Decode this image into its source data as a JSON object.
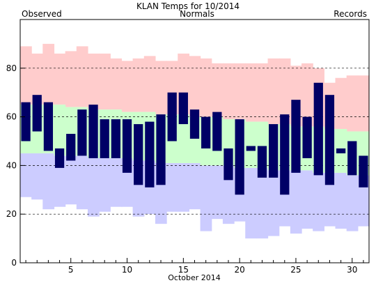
{
  "chart_data": {
    "type": "bar",
    "title": "KLAN Temps for 10/2014",
    "xlabel": "October 2014",
    "ylabel": "",
    "legend": {
      "observed": "Observed",
      "normals": "Normals",
      "records": "Records"
    },
    "colors": {
      "observed": "#000066",
      "normals_fill": "#ccffcc",
      "records_fill": "#ffcccc",
      "records_low_fill": "#ccccff",
      "normals_label": "#006600",
      "records_label": "#cc99cc",
      "observed_label": "#000066"
    },
    "xlim": [
      0.5,
      31.5
    ],
    "ylim": [
      0,
      100
    ],
    "x_ticks": [
      5,
      10,
      15,
      20,
      25,
      30
    ],
    "y_ticks": [
      0,
      20,
      40,
      60,
      80
    ],
    "gridlines_y": [
      20,
      40,
      60,
      80
    ],
    "days": [
      1,
      2,
      3,
      4,
      5,
      6,
      7,
      8,
      9,
      10,
      11,
      12,
      13,
      14,
      15,
      16,
      17,
      18,
      19,
      20,
      21,
      22,
      23,
      24,
      25,
      26,
      27,
      28,
      29,
      30,
      31
    ],
    "record_high": [
      89,
      86,
      90,
      86,
      87,
      89,
      86,
      86,
      84,
      83,
      84,
      85,
      83,
      83,
      86,
      85,
      84,
      82,
      82,
      82,
      82,
      82,
      84,
      84,
      81,
      82,
      80,
      74,
      76,
      77,
      77
    ],
    "normal_high": [
      65,
      65,
      65,
      65,
      64,
      64,
      63,
      63,
      63,
      62,
      62,
      62,
      61,
      61,
      61,
      60,
      60,
      60,
      59,
      59,
      58,
      58,
      57,
      57,
      56,
      56,
      56,
      55,
      55,
      54,
      54
    ],
    "normal_low": [
      45,
      45,
      45,
      44,
      44,
      44,
      43,
      43,
      43,
      43,
      42,
      42,
      41,
      41,
      41,
      41,
      40,
      40,
      40,
      39,
      39,
      39,
      38,
      38,
      38,
      38,
      37,
      37,
      37,
      36,
      36
    ],
    "record_low": [
      27,
      26,
      22,
      23,
      24,
      22,
      19,
      21,
      23,
      23,
      19,
      20,
      16,
      21,
      21,
      22,
      13,
      18,
      16,
      17,
      10,
      10,
      11,
      15,
      12,
      14,
      13,
      15,
      14,
      13,
      15
    ],
    "observed_high": [
      66,
      69,
      66,
      47,
      53,
      63,
      65,
      59,
      59,
      59,
      57,
      58,
      61,
      70,
      70,
      63,
      60,
      62,
      47,
      59,
      48,
      48,
      57,
      61,
      67,
      60,
      74,
      69,
      47,
      50,
      44
    ],
    "observed_low": [
      50,
      54,
      46,
      39,
      42,
      44,
      43,
      43,
      43,
      37,
      32,
      31,
      32,
      50,
      57,
      51,
      47,
      46,
      34,
      28,
      46,
      35,
      35,
      28,
      37,
      43,
      36,
      32,
      45,
      36,
      31
    ]
  }
}
